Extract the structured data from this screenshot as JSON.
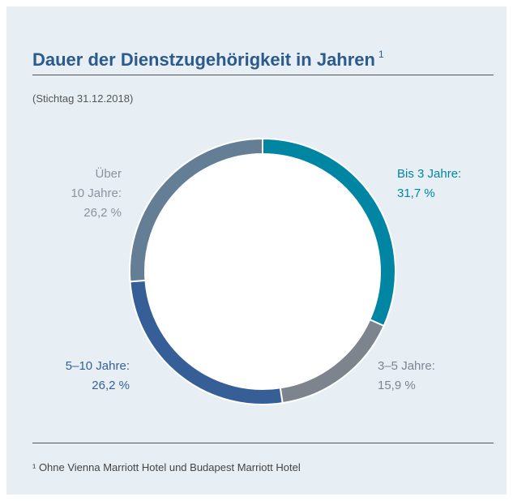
{
  "chart_data": {
    "type": "donut",
    "title": "Dauer der Dienstzugehörigkeit in Jahren",
    "title_note": "1",
    "subtitle": "(Stichtag 31.12.2018)",
    "footnote": "¹ Ohne Vienna Marriott Hotel und Budapest Marriott Hotel",
    "categories": [
      "Bis 3 Jahre:",
      "3–5 Jahre:",
      "5–10 Jahre:",
      "Über\n10 Jahre:"
    ],
    "values": [
      31.7,
      15.9,
      26.2,
      26.2
    ],
    "value_labels": [
      "31,7 %",
      "15,9 %",
      "26,2 %",
      "26,2 %"
    ],
    "colors": [
      "#0086a3",
      "#7e848e",
      "#355f96",
      "#647e95"
    ]
  }
}
